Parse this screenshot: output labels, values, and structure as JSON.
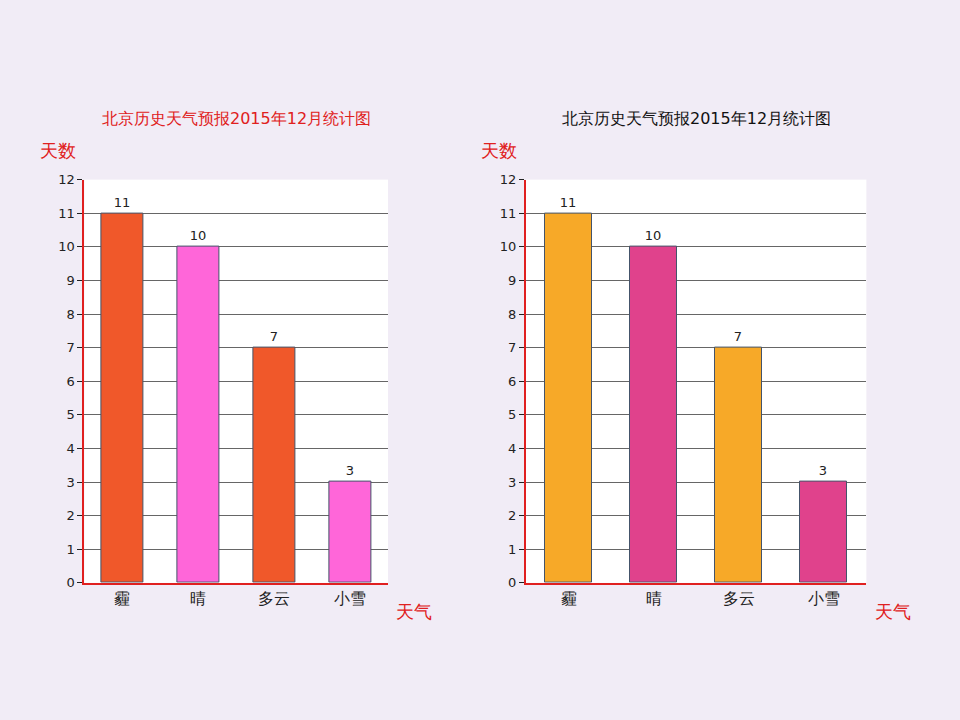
{
  "chart_data": [
    {
      "type": "bar",
      "title": "北京历史天气预报2015年12月统计图",
      "categories": [
        "霾",
        "晴",
        "多云",
        "小雪"
      ],
      "values": [
        11,
        10,
        7,
        3
      ],
      "colors": [
        "#f0582a",
        "#ff66d9",
        "#f0582a",
        "#ff66d9"
      ],
      "xlabel": "天气",
      "ylabel": "天数",
      "ylim": [
        0,
        12
      ],
      "yticks": [
        0,
        1,
        2,
        3,
        4,
        5,
        6,
        7,
        8,
        9,
        10,
        11,
        12
      ],
      "grid": true,
      "data_labels": true
    },
    {
      "type": "bar",
      "title": "北京历史天气预报2015年12月统计图",
      "categories": [
        "霾",
        "晴",
        "多云",
        "小雪"
      ],
      "values": [
        11,
        10,
        7,
        3
      ],
      "colors": [
        "#f7a928",
        "#e0428c",
        "#f7a928",
        "#e0428c"
      ],
      "xlabel": "天气",
      "ylabel": "天数",
      "ylim": [
        0,
        12
      ],
      "yticks": [
        0,
        1,
        2,
        3,
        4,
        5,
        6,
        7,
        8,
        9,
        10,
        11,
        12
      ],
      "grid": true,
      "data_labels": true
    }
  ]
}
